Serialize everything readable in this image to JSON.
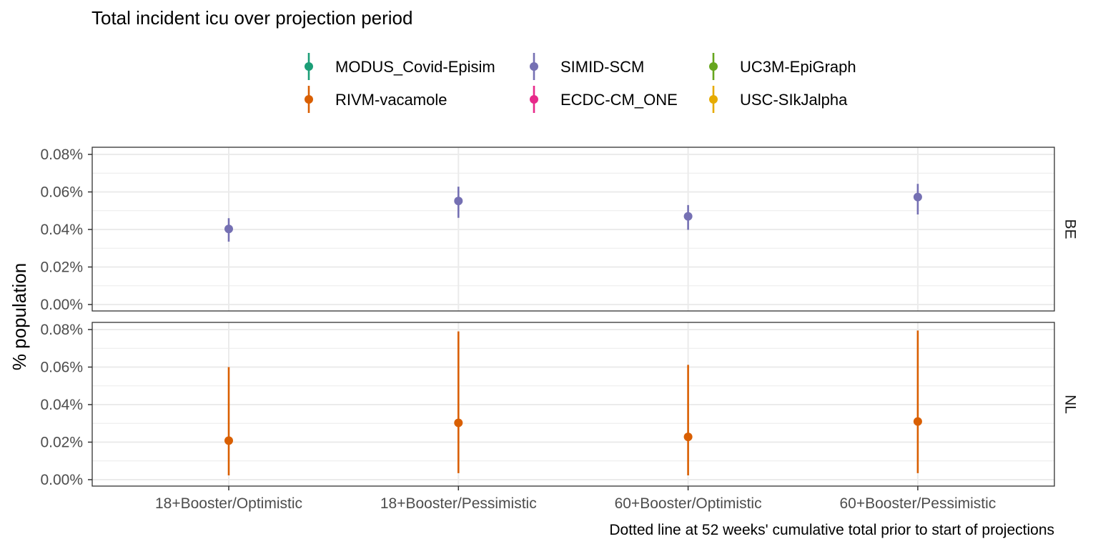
{
  "chart_data": {
    "type": "scatter",
    "title": "Total incident icu over projection period",
    "ylabel": "% population",
    "xlabel": "",
    "caption": "Dotted line at 52 weeks' cumulative total prior to start of projections",
    "categories": [
      "18+Booster/Optimistic",
      "18+Booster/Pessimistic",
      "60+Booster/Optimistic",
      "60+Booster/Pessimistic"
    ],
    "ylim": [
      0,
      0.08
    ],
    "y_ticks": [
      "0.00%",
      "0.02%",
      "0.04%",
      "0.06%",
      "0.08%"
    ],
    "grid": true,
    "legend_position": "top",
    "legend": [
      {
        "name": "MODUS_Covid-Episim",
        "color": "#1b9e77"
      },
      {
        "name": "RIVM-vacamole",
        "color": "#d95f02"
      },
      {
        "name": "SIMID-SCM",
        "color": "#7570b3"
      },
      {
        "name": "ECDC-CM_ONE",
        "color": "#e7298a"
      },
      {
        "name": "UC3M-EpiGraph",
        "color": "#66a61e"
      },
      {
        "name": "USC-SIkJalpha",
        "color": "#e6ab02"
      }
    ],
    "panels": [
      {
        "label": "BE",
        "series": [
          {
            "name": "SIMID-SCM",
            "color": "#7570b3",
            "values": [
              0.0403,
              0.0552,
              0.047,
              0.0573
            ],
            "lower": [
              0.0335,
              0.0462,
              0.0398,
              0.048
            ],
            "upper": [
              0.046,
              0.0628,
              0.053,
              0.0643
            ]
          }
        ]
      },
      {
        "label": "NL",
        "series": [
          {
            "name": "RIVM-vacamole",
            "color": "#d95f02",
            "values": [
              0.0208,
              0.0303,
              0.0228,
              0.031
            ],
            "lower": [
              0.0023,
              0.0035,
              0.0023,
              0.0035
            ],
            "upper": [
              0.06,
              0.079,
              0.0612,
              0.0795
            ]
          }
        ]
      }
    ]
  }
}
